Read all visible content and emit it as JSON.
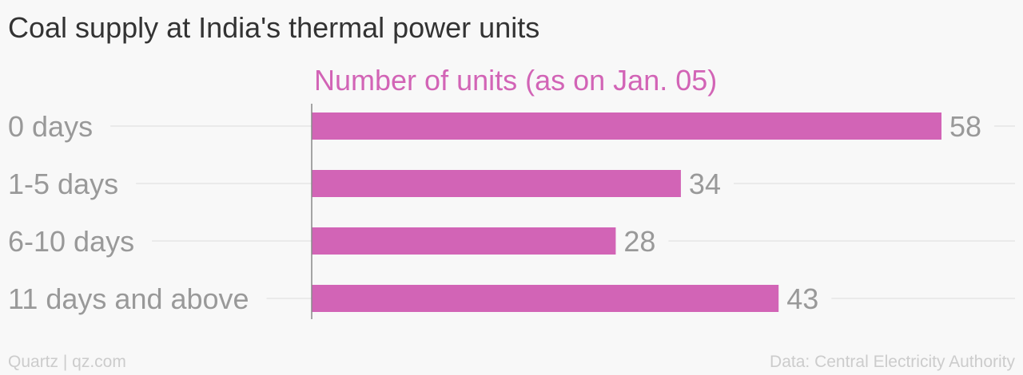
{
  "title": "Coal supply at India's thermal power units",
  "colors": {
    "bar": "#d264b6",
    "series_label": "#d264b6",
    "category_label": "#999999",
    "value_label": "#999999",
    "gridline": "#e6e6e6",
    "axis": "#888888"
  },
  "chart_data": {
    "type": "bar",
    "orientation": "horizontal",
    "title": "Coal supply at India's thermal power units",
    "categories": [
      "0 days",
      "1-5 days",
      "6-10 days",
      "11 days and above"
    ],
    "series": [
      {
        "name": "Number of units (as on Jan. 05)",
        "values": [
          58,
          34,
          28,
          43
        ]
      }
    ],
    "data_labels": [
      "58",
      "34",
      "28",
      "43"
    ],
    "xlim": [
      0,
      58
    ],
    "grid": "horizontal",
    "legend": "top"
  },
  "footer": {
    "brand": "Quartz | qz.com",
    "source": "Data: Central Electricity Authority"
  }
}
